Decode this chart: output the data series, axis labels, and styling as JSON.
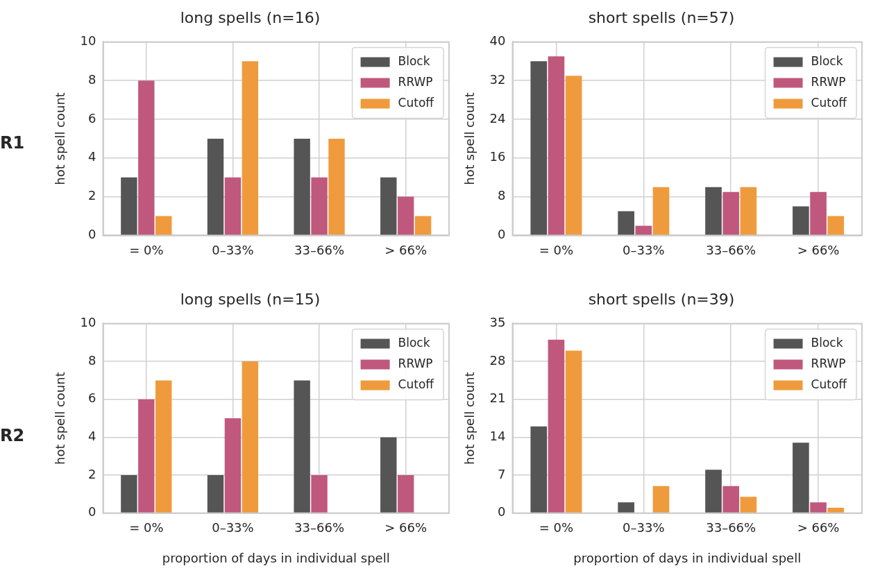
{
  "chart_data": [
    {
      "type": "bar",
      "title": "long spells (n=16)",
      "ylabel": "hot spell count",
      "annotations": [
        "R1"
      ],
      "categories": [
        "= 0%",
        "0–33%",
        "33–66%",
        "> 66%"
      ],
      "ylim": [
        0,
        10
      ],
      "yticks": [
        0,
        2,
        4,
        6,
        8,
        10
      ],
      "grid": true,
      "legend": "top right",
      "series": [
        {
          "name": "Block",
          "color": "#555555",
          "values": [
            3,
            5,
            5,
            3
          ]
        },
        {
          "name": "RRWP",
          "color": "#c0587e",
          "values": [
            8,
            3,
            3,
            2
          ]
        },
        {
          "name": "Cutoff",
          "color": "#ef9b3d",
          "values": [
            1,
            9,
            5,
            1
          ]
        }
      ]
    },
    {
      "type": "bar",
      "title": "short spells (n=57)",
      "ylabel": "hot spell count",
      "categories": [
        "= 0%",
        "0–33%",
        "33–66%",
        "> 66%"
      ],
      "ylim": [
        0,
        40
      ],
      "yticks": [
        0,
        8,
        16,
        24,
        32,
        40
      ],
      "grid": true,
      "legend": "top right",
      "series": [
        {
          "name": "Block",
          "color": "#555555",
          "values": [
            36,
            5,
            10,
            6
          ]
        },
        {
          "name": "RRWP",
          "color": "#c0587e",
          "values": [
            37,
            2,
            9,
            9
          ]
        },
        {
          "name": "Cutoff",
          "color": "#ef9b3d",
          "values": [
            33,
            10,
            10,
            4
          ]
        }
      ]
    },
    {
      "type": "bar",
      "title": "long spells (n=15)",
      "xlabel": "proportion of days in individual spell",
      "ylabel": "hot spell count",
      "annotations": [
        "R2"
      ],
      "categories": [
        "= 0%",
        "0–33%",
        "33–66%",
        "> 66%"
      ],
      "ylim": [
        0,
        10
      ],
      "yticks": [
        0,
        2,
        4,
        6,
        8,
        10
      ],
      "grid": true,
      "legend": "top right",
      "series": [
        {
          "name": "Block",
          "color": "#555555",
          "values": [
            2,
            2,
            7,
            4
          ]
        },
        {
          "name": "RRWP",
          "color": "#c0587e",
          "values": [
            6,
            5,
            2,
            2
          ]
        },
        {
          "name": "Cutoff",
          "color": "#ef9b3d",
          "values": [
            7,
            8,
            0,
            0
          ]
        }
      ]
    },
    {
      "type": "bar",
      "title": "short spells (n=39)",
      "xlabel": "proportion of days in individual spell",
      "ylabel": "hot spell count",
      "categories": [
        "= 0%",
        "0–33%",
        "33–66%",
        "> 66%"
      ],
      "ylim": [
        0,
        35
      ],
      "yticks": [
        0,
        7,
        14,
        21,
        28,
        35
      ],
      "grid": true,
      "legend": "top right",
      "series": [
        {
          "name": "Block",
          "color": "#555555",
          "values": [
            16,
            2,
            8,
            13
          ]
        },
        {
          "name": "RRWP",
          "color": "#c0587e",
          "values": [
            32,
            0,
            5,
            2
          ]
        },
        {
          "name": "Cutoff",
          "color": "#ef9b3d",
          "values": [
            30,
            5,
            3,
            1
          ]
        }
      ]
    }
  ]
}
